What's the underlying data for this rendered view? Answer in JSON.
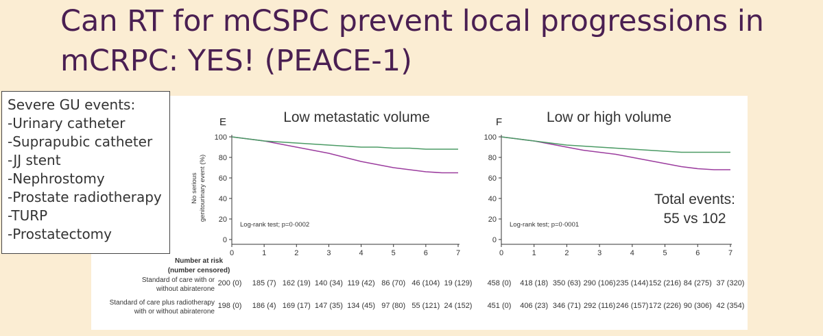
{
  "slide": {
    "title": "Can RT for mCSPC prevent local progressions in mCRPC: YES! (PEACE-1)"
  },
  "gu_box": {
    "heading": "Severe GU events:",
    "items": [
      "-Urinary catheter",
      "-Suprapubic catheter",
      "-JJ stent",
      "-Nephrostomy",
      "-Prostate radiotherapy",
      "-TURP",
      "-Prostatectomy"
    ]
  },
  "total_events": {
    "line1": "Total events:",
    "line2": "55 vs 102"
  },
  "risk_table": {
    "header1": "Number at risk",
    "header2": "(number censored)",
    "row_labels": [
      [
        "Standard of care with or",
        "without abiraterone"
      ],
      [
        "Standard of care plus radiotherapy",
        "with or without abiraterone"
      ]
    ]
  },
  "colors": {
    "background": "#fbedd3",
    "title": "#4a1f52",
    "standard_of_care": "#9b3c9e",
    "plus_radiotherapy": "#4a9a64"
  },
  "chart_data": [
    {
      "type": "line",
      "panel_letter": "E",
      "title": "Low metastatic volume",
      "ylabel": "No serious genitourinary event (%)",
      "xlim": [
        0,
        7
      ],
      "ylim": [
        0,
        100
      ],
      "xticks": [
        0,
        1,
        2,
        3,
        4,
        5,
        6,
        7
      ],
      "yticks": [
        0,
        20,
        40,
        60,
        80,
        100
      ],
      "annotation": "Log-rank test; p=0·0002",
      "series": [
        {
          "color": "#9b3c9e",
          "x": [
            0,
            0.5,
            1,
            1.5,
            2,
            2.5,
            3,
            3.5,
            4,
            4.5,
            5,
            5.5,
            6,
            6.5,
            7
          ],
          "y": [
            100,
            98,
            96,
            93,
            90,
            87,
            84,
            80,
            76,
            73,
            70,
            68,
            66,
            65,
            65
          ]
        },
        {
          "color": "#4a9a64",
          "x": [
            0,
            0.5,
            1,
            1.5,
            2,
            2.5,
            3,
            3.5,
            4,
            4.5,
            5,
            5.5,
            6,
            6.5,
            7
          ],
          "y": [
            100,
            98,
            96,
            95,
            94,
            93,
            92,
            91,
            90,
            90,
            89,
            89,
            88,
            88,
            88
          ]
        }
      ],
      "at_risk": [
        [
          "200 (0)",
          "185 (7)",
          "162 (19)",
          "140 (34)",
          "119 (42)",
          "86 (70)",
          "46 (104)",
          "19 (129)"
        ],
        [
          "198 (0)",
          "186 (4)",
          "169 (17)",
          "147 (35)",
          "134 (45)",
          "97 (80)",
          "55 (121)",
          "24 (152)"
        ]
      ]
    },
    {
      "type": "line",
      "panel_letter": "F",
      "title": "Low or high volume",
      "xlim": [
        0,
        7
      ],
      "ylim": [
        0,
        100
      ],
      "xticks": [
        0,
        1,
        2,
        3,
        4,
        5,
        6,
        7
      ],
      "yticks": [
        0,
        20,
        40,
        60,
        80,
        100
      ],
      "annotation": "Log-rank test; p=0·0001",
      "series": [
        {
          "color": "#9b3c9e",
          "x": [
            0,
            0.5,
            1,
            1.5,
            2,
            2.5,
            3,
            3.5,
            4,
            4.5,
            5,
            5.5,
            6,
            6.5,
            7
          ],
          "y": [
            100,
            98,
            96,
            93,
            90,
            87,
            85,
            83,
            80,
            77,
            74,
            71,
            69,
            68,
            68
          ]
        },
        {
          "color": "#4a9a64",
          "x": [
            0,
            0.5,
            1,
            1.5,
            2,
            2.5,
            3,
            3.5,
            4,
            4.5,
            5,
            5.5,
            6,
            6.5,
            7
          ],
          "y": [
            100,
            98,
            96,
            94,
            92,
            91,
            90,
            89,
            88,
            87,
            86,
            85,
            85,
            85,
            85
          ]
        }
      ],
      "at_risk": [
        [
          "458 (0)",
          "418 (18)",
          "350 (63)",
          "290 (106)",
          "235 (144)",
          "152 (216)",
          "84 (275)",
          "37 (320)"
        ],
        [
          "451 (0)",
          "406 (23)",
          "346 (71)",
          "292 (116)",
          "246 (157)",
          "172 (226)",
          "90 (306)",
          "42 (354)"
        ]
      ]
    }
  ]
}
